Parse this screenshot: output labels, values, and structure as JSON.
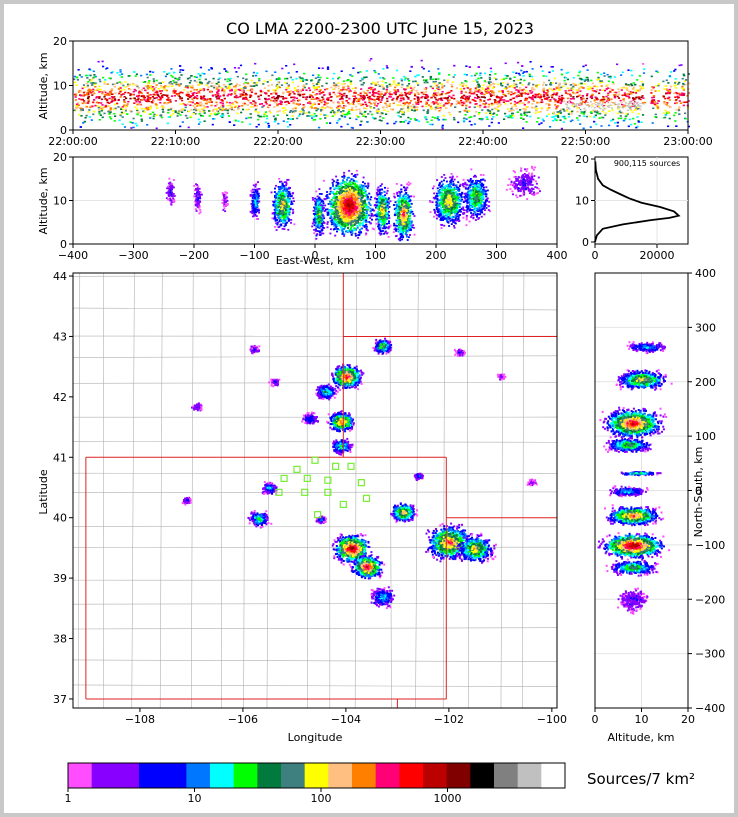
{
  "title": "CO LMA 2200-2300 UTC June 15, 2023",
  "colors": {
    "scale": [
      "#ff4dff",
      "#8800ff",
      "#8800ff",
      "#0000ff",
      "#0000ff",
      "#0077ff",
      "#00ffff",
      "#00ff00",
      "#007a3d",
      "#3e8080",
      "#ffff00",
      "#ffbf80",
      "#ff8000",
      "#ff0077",
      "#ff0000",
      "#bb0000",
      "#800000",
      "#000000",
      "#808080",
      "#c0c0c0",
      "#ffffff"
    ],
    "border": "#dd2222",
    "county": "#b0b0b0",
    "station": "#77ee33"
  },
  "chart_data": [
    {
      "type": "heatmap",
      "name": "altitude-time",
      "ylabel": "Altitude, km",
      "xlim": [
        "22:00:00",
        "23:00:00"
      ],
      "ylim": [
        0,
        20
      ],
      "x_ticks": [
        "22:00:00",
        "22:10:00",
        "22:20:00",
        "22:30:00",
        "22:40:00",
        "22:50:00",
        "23:00:00"
      ],
      "y_ticks": [
        "0",
        "10",
        "20"
      ]
    },
    {
      "type": "heatmap",
      "name": "east-west-altitude",
      "xlabel": "East-West, km",
      "ylabel": "Altitude, km",
      "xlim": [
        -400,
        400
      ],
      "ylim": [
        0,
        20
      ],
      "x_ticks": [
        "−400",
        "−300",
        "−200",
        "−100",
        "0",
        "100",
        "200",
        "300",
        "400"
      ],
      "y_ticks": [
        "0",
        "10",
        "20"
      ],
      "clusters": [
        {
          "x": -240,
          "z": 12,
          "w": 8,
          "intensity": 2
        },
        {
          "x": -195,
          "z": 11,
          "w": 8,
          "intensity": 2
        },
        {
          "x": -150,
          "z": 10,
          "w": 6,
          "intensity": 1
        },
        {
          "x": -100,
          "z": 10,
          "w": 10,
          "intensity": 4
        },
        {
          "x": -55,
          "z": 9,
          "w": 20,
          "intensity": 7
        },
        {
          "x": 5,
          "z": 7,
          "w": 12,
          "intensity": 6
        },
        {
          "x": 55,
          "z": 9,
          "w": 45,
          "intensity": 10
        },
        {
          "x": 110,
          "z": 8,
          "w": 15,
          "intensity": 7
        },
        {
          "x": 145,
          "z": 7,
          "w": 20,
          "intensity": 8
        },
        {
          "x": 220,
          "z": 10,
          "w": 30,
          "intensity": 7
        },
        {
          "x": 265,
          "z": 11,
          "w": 25,
          "intensity": 6
        },
        {
          "x": 345,
          "z": 14,
          "w": 30,
          "intensity": 2
        }
      ]
    },
    {
      "type": "line",
      "name": "altitude-histogram",
      "annotation": "900,115 sources",
      "xlim": [
        0,
        30000
      ],
      "ylim": [
        0,
        20
      ],
      "x_ticks": [
        "0",
        "20000"
      ],
      "y_ticks": [
        "0",
        "10",
        "20"
      ],
      "x": [
        0,
        600,
        2500,
        9000,
        18000,
        24000,
        27000,
        25500,
        21000,
        15000,
        11000,
        8000,
        5000,
        2500,
        1000,
        300,
        100
      ],
      "y": [
        0.5,
        2,
        3.5,
        4.5,
        5.5,
        6,
        6.5,
        7.5,
        8.5,
        9.5,
        10.5,
        11.5,
        12.5,
        13.5,
        15,
        17,
        19
      ]
    },
    {
      "type": "heatmap",
      "name": "plan-view",
      "xlabel": "Longitude",
      "ylabel": "Latitude",
      "xlim": [
        -109.3,
        -99.9
      ],
      "ylim": [
        36.85,
        44.05
      ],
      "x_ticks": [
        "−108",
        "−106",
        "−104",
        "−102",
        "−100"
      ],
      "y_ticks": [
        "37",
        "38",
        "39",
        "40",
        "41",
        "42",
        "43",
        "44"
      ],
      "clusters": [
        {
          "lon": -103.9,
          "lat": 39.5,
          "r": 0.35,
          "intensity": 10
        },
        {
          "lon": -103.6,
          "lat": 39.2,
          "r": 0.3,
          "intensity": 9
        },
        {
          "lon": -103.3,
          "lat": 38.7,
          "r": 0.25,
          "intensity": 4
        },
        {
          "lon": -102.0,
          "lat": 39.6,
          "r": 0.45,
          "intensity": 8
        },
        {
          "lon": -101.5,
          "lat": 39.5,
          "r": 0.35,
          "intensity": 7
        },
        {
          "lon": -102.9,
          "lat": 40.1,
          "r": 0.25,
          "intensity": 7
        },
        {
          "lon": -104.1,
          "lat": 41.6,
          "r": 0.25,
          "intensity": 8
        },
        {
          "lon": -104.0,
          "lat": 42.35,
          "r": 0.3,
          "intensity": 9
        },
        {
          "lon": -104.4,
          "lat": 42.1,
          "r": 0.2,
          "intensity": 5
        },
        {
          "lon": -103.3,
          "lat": 42.85,
          "r": 0.18,
          "intensity": 6
        },
        {
          "lon": -104.1,
          "lat": 41.2,
          "r": 0.2,
          "intensity": 5
        },
        {
          "lon": -105.7,
          "lat": 40.0,
          "r": 0.2,
          "intensity": 5
        },
        {
          "lon": -105.5,
          "lat": 40.5,
          "r": 0.15,
          "intensity": 4
        },
        {
          "lon": -107.1,
          "lat": 40.3,
          "r": 0.1,
          "intensity": 2
        },
        {
          "lon": -105.4,
          "lat": 42.25,
          "r": 0.1,
          "intensity": 2
        },
        {
          "lon": -105.8,
          "lat": 42.8,
          "r": 0.1,
          "intensity": 2
        },
        {
          "lon": -106.9,
          "lat": 41.85,
          "r": 0.1,
          "intensity": 2
        },
        {
          "lon": -101.8,
          "lat": 42.75,
          "r": 0.1,
          "intensity": 2
        },
        {
          "lon": -101.0,
          "lat": 42.35,
          "r": 0.08,
          "intensity": 1
        },
        {
          "lon": -102.6,
          "lat": 40.7,
          "r": 0.1,
          "intensity": 3
        },
        {
          "lon": -104.7,
          "lat": 41.65,
          "r": 0.15,
          "intensity": 3
        },
        {
          "lon": -100.4,
          "lat": 40.6,
          "r": 0.1,
          "intensity": 1
        },
        {
          "lon": -104.5,
          "lat": 39.98,
          "r": 0.1,
          "intensity": 3
        }
      ],
      "stations": [
        [
          -104.6,
          40.95
        ],
        [
          -104.95,
          40.8
        ],
        [
          -104.2,
          40.85
        ],
        [
          -103.9,
          40.85
        ],
        [
          -105.2,
          40.65
        ],
        [
          -104.75,
          40.65
        ],
        [
          -104.35,
          40.62
        ],
        [
          -103.7,
          40.58
        ],
        [
          -105.3,
          40.42
        ],
        [
          -104.8,
          40.42
        ],
        [
          -104.35,
          40.42
        ],
        [
          -103.6,
          40.32
        ],
        [
          -104.05,
          40.22
        ],
        [
          -104.55,
          40.05
        ]
      ]
    },
    {
      "type": "heatmap",
      "name": "north-south-altitude",
      "xlabel": "Altitude, km",
      "ylabel": "North-South, km",
      "xlim": [
        0,
        20
      ],
      "ylim": [
        -400,
        400
      ],
      "x_ticks": [
        "0",
        "10",
        "20"
      ],
      "y_ticks": [
        "−400",
        "−300",
        "−200",
        "−100",
        "0",
        "100",
        "200",
        "300",
        "400"
      ],
      "clusters": [
        {
          "ns": 265,
          "z": 11,
          "w": 10,
          "intensity": 4
        },
        {
          "ns": 205,
          "z": 10,
          "w": 20,
          "intensity": 7
        },
        {
          "ns": 125,
          "z": 8,
          "w": 30,
          "intensity": 9
        },
        {
          "ns": 85,
          "z": 7,
          "w": 15,
          "intensity": 6
        },
        {
          "ns": 33,
          "z": 9,
          "w": 4,
          "intensity": 5
        },
        {
          "ns": 0,
          "z": 7,
          "w": 10,
          "intensity": 4
        },
        {
          "ns": -45,
          "z": 8,
          "w": 20,
          "intensity": 8
        },
        {
          "ns": -100,
          "z": 8,
          "w": 25,
          "intensity": 10
        },
        {
          "ns": -140,
          "z": 8,
          "w": 15,
          "intensity": 6
        },
        {
          "ns": -200,
          "z": 8,
          "w": 25,
          "intensity": 2
        }
      ]
    }
  ],
  "colorbar": {
    "label": "Sources/7 km²",
    "ticks": [
      "1",
      "10",
      "100",
      "1000"
    ]
  }
}
